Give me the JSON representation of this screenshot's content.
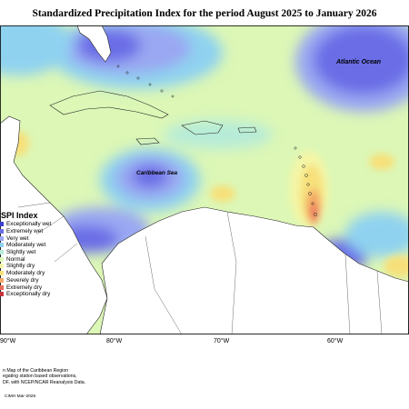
{
  "title": "Standardized Precipitation Index for the period August 2025 to January 2026",
  "map_labels": {
    "atlantic": "Atlantic Ocean",
    "caribbean": "Caribbean Sea"
  },
  "legend": {
    "title": "SPI Index",
    "items": [
      {
        "label": "Exceptionally wet",
        "color": "#3a3fd0"
      },
      {
        "label": "Extremely wet",
        "color": "#6a6de6"
      },
      {
        "label": "Very wet",
        "color": "#9aa7f2"
      },
      {
        "label": "Moderately wet",
        "color": "#8fd2f0"
      },
      {
        "label": "Slightly wet",
        "color": "#b7ecd8"
      },
      {
        "label": "Normal",
        "color": "#dcf7b6"
      },
      {
        "label": "Slightly dry",
        "color": "#f4f6a6"
      },
      {
        "label": "Moderately dry",
        "color": "#f7e07a"
      },
      {
        "label": "Severely dry",
        "color": "#f3a868"
      },
      {
        "label": "Extremely dry",
        "color": "#ea6a5a"
      },
      {
        "label": "Exceptionally dry",
        "color": "#c8323a"
      }
    ]
  },
  "longitude_labels": [
    "90°W",
    "80°W",
    "70°W",
    "60°W"
  ],
  "footer_lines": [
    "n Map of the Caribbean Region",
    "egating station based observations,",
    "DF, with NCEP/NCAR Reanalysis Data."
  ],
  "credit": "CIMH Mar-2026"
}
